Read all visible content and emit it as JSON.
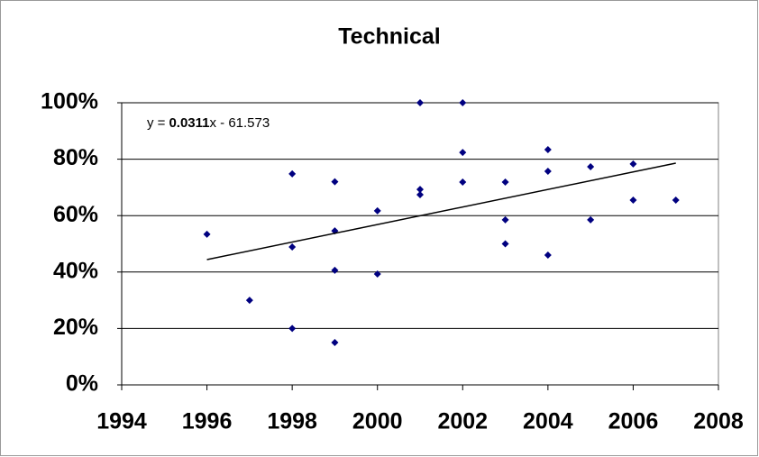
{
  "chart_data": {
    "type": "scatter",
    "title": "Technical",
    "x": [
      1996,
      1997,
      1998,
      1998,
      1998,
      1999,
      1999,
      1999,
      1999,
      2000,
      2000,
      2001,
      2001,
      2001,
      2002,
      2002,
      2002,
      2003,
      2003,
      2003,
      2004,
      2004,
      2004,
      2005,
      2005,
      2006,
      2006,
      2007
    ],
    "values": [
      0.534,
      0.3,
      0.748,
      0.489,
      0.2,
      0.72,
      0.546,
      0.406,
      0.15,
      0.617,
      0.393,
      1.0,
      0.693,
      0.674,
      1.0,
      0.824,
      0.719,
      0.719,
      0.585,
      0.5,
      0.834,
      0.757,
      0.46,
      0.773,
      0.585,
      0.783,
      0.655,
      0.655
    ],
    "color": "#000080",
    "trendline": {
      "x": [
        1996,
        2007
      ],
      "values": [
        0.444,
        0.786
      ],
      "color": "#000000",
      "equation": {
        "prefix": "y =",
        "coefficient": "0.0311",
        "suffix": "x - 61.573"
      }
    },
    "xlim": [
      1994,
      2008
    ],
    "xticks": [
      1994,
      1996,
      1998,
      2000,
      2002,
      2004,
      2006,
      2008
    ],
    "ylim": [
      0,
      1
    ],
    "yticks": [
      {
        "value": 0,
        "label": "0%"
      },
      {
        "value": 0.2,
        "label": "20%"
      },
      {
        "value": 0.4,
        "label": "40%"
      },
      {
        "value": 0.6,
        "label": "60%"
      },
      {
        "value": 0.8,
        "label": "80%"
      },
      {
        "value": 1,
        "label": "100%"
      }
    ],
    "grid": true
  }
}
